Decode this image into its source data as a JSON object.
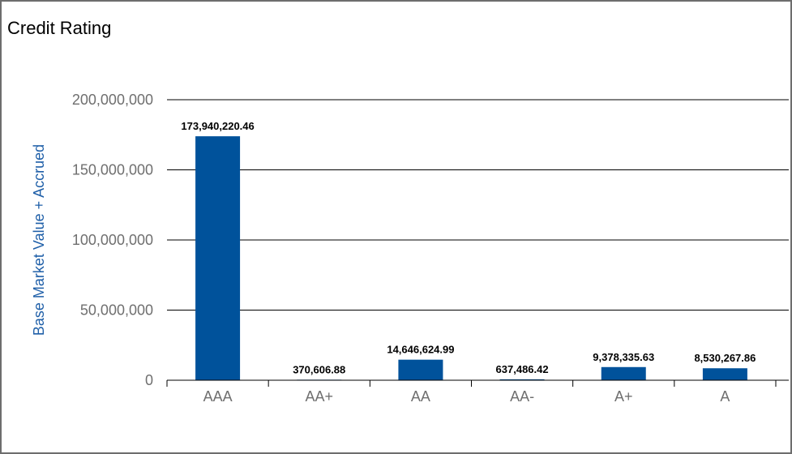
{
  "chart_data": {
    "type": "bar",
    "title": "Credit Rating",
    "xlabel": "",
    "ylabel": "Base Market Value + Accrued",
    "categories": [
      "AAA",
      "AA+",
      "AA",
      "AA-",
      "A+",
      "A"
    ],
    "values": [
      173940220.46,
      370606.88,
      14646624.99,
      637486.42,
      9378335.63,
      8530267.86
    ],
    "data_labels": [
      "173,940,220.46",
      "370,606.88",
      "14,646,624.99",
      "637,486.42",
      "9,378,335.63",
      "8,530,267.86"
    ],
    "ylim": [
      0,
      200000000
    ],
    "yticks": [
      0,
      50000000,
      100000000,
      150000000,
      200000000
    ],
    "ytick_labels": [
      "0",
      "50,000,000",
      "100,000,000",
      "150,000,000",
      "200,000,000"
    ],
    "grid": true,
    "legend": "none"
  },
  "colors": {
    "bar": "#00529b",
    "ylabel": "#1f5fa8",
    "gridline": "#000000",
    "tick_text": "#6f6f6f"
  }
}
